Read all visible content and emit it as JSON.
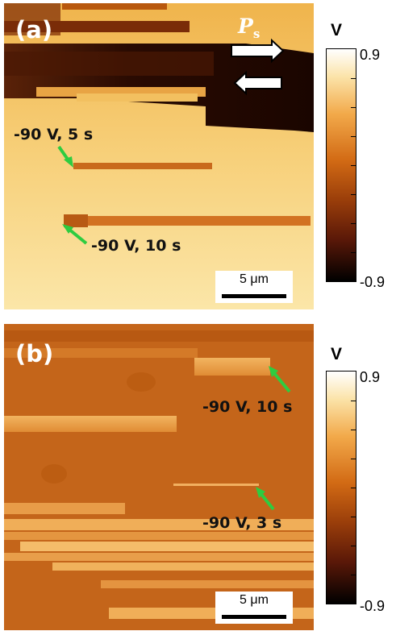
{
  "panel_a": {
    "label": "(a)",
    "polarization_label": "P",
    "polarization_sub": "s",
    "annotation_1": "-90 V, 5 s",
    "annotation_2": "-90 V, 10 s",
    "scale_bar": "5 μm",
    "colorbar": {
      "unit": "V",
      "max": "0.9",
      "min": "-0.9"
    }
  },
  "panel_b": {
    "label": "(b)",
    "annotation_1": "-90 V, 10 s",
    "annotation_2": "-90 V, 3 s",
    "scale_bar": "5 μm",
    "colorbar": {
      "unit": "V",
      "max": "0.9",
      "min": "-0.9"
    }
  },
  "colors": {
    "arrow": "#2ecc40",
    "domain_dark": "#1e0800",
    "background_a": "#f4c260",
    "background_b": "#c86a1c"
  }
}
